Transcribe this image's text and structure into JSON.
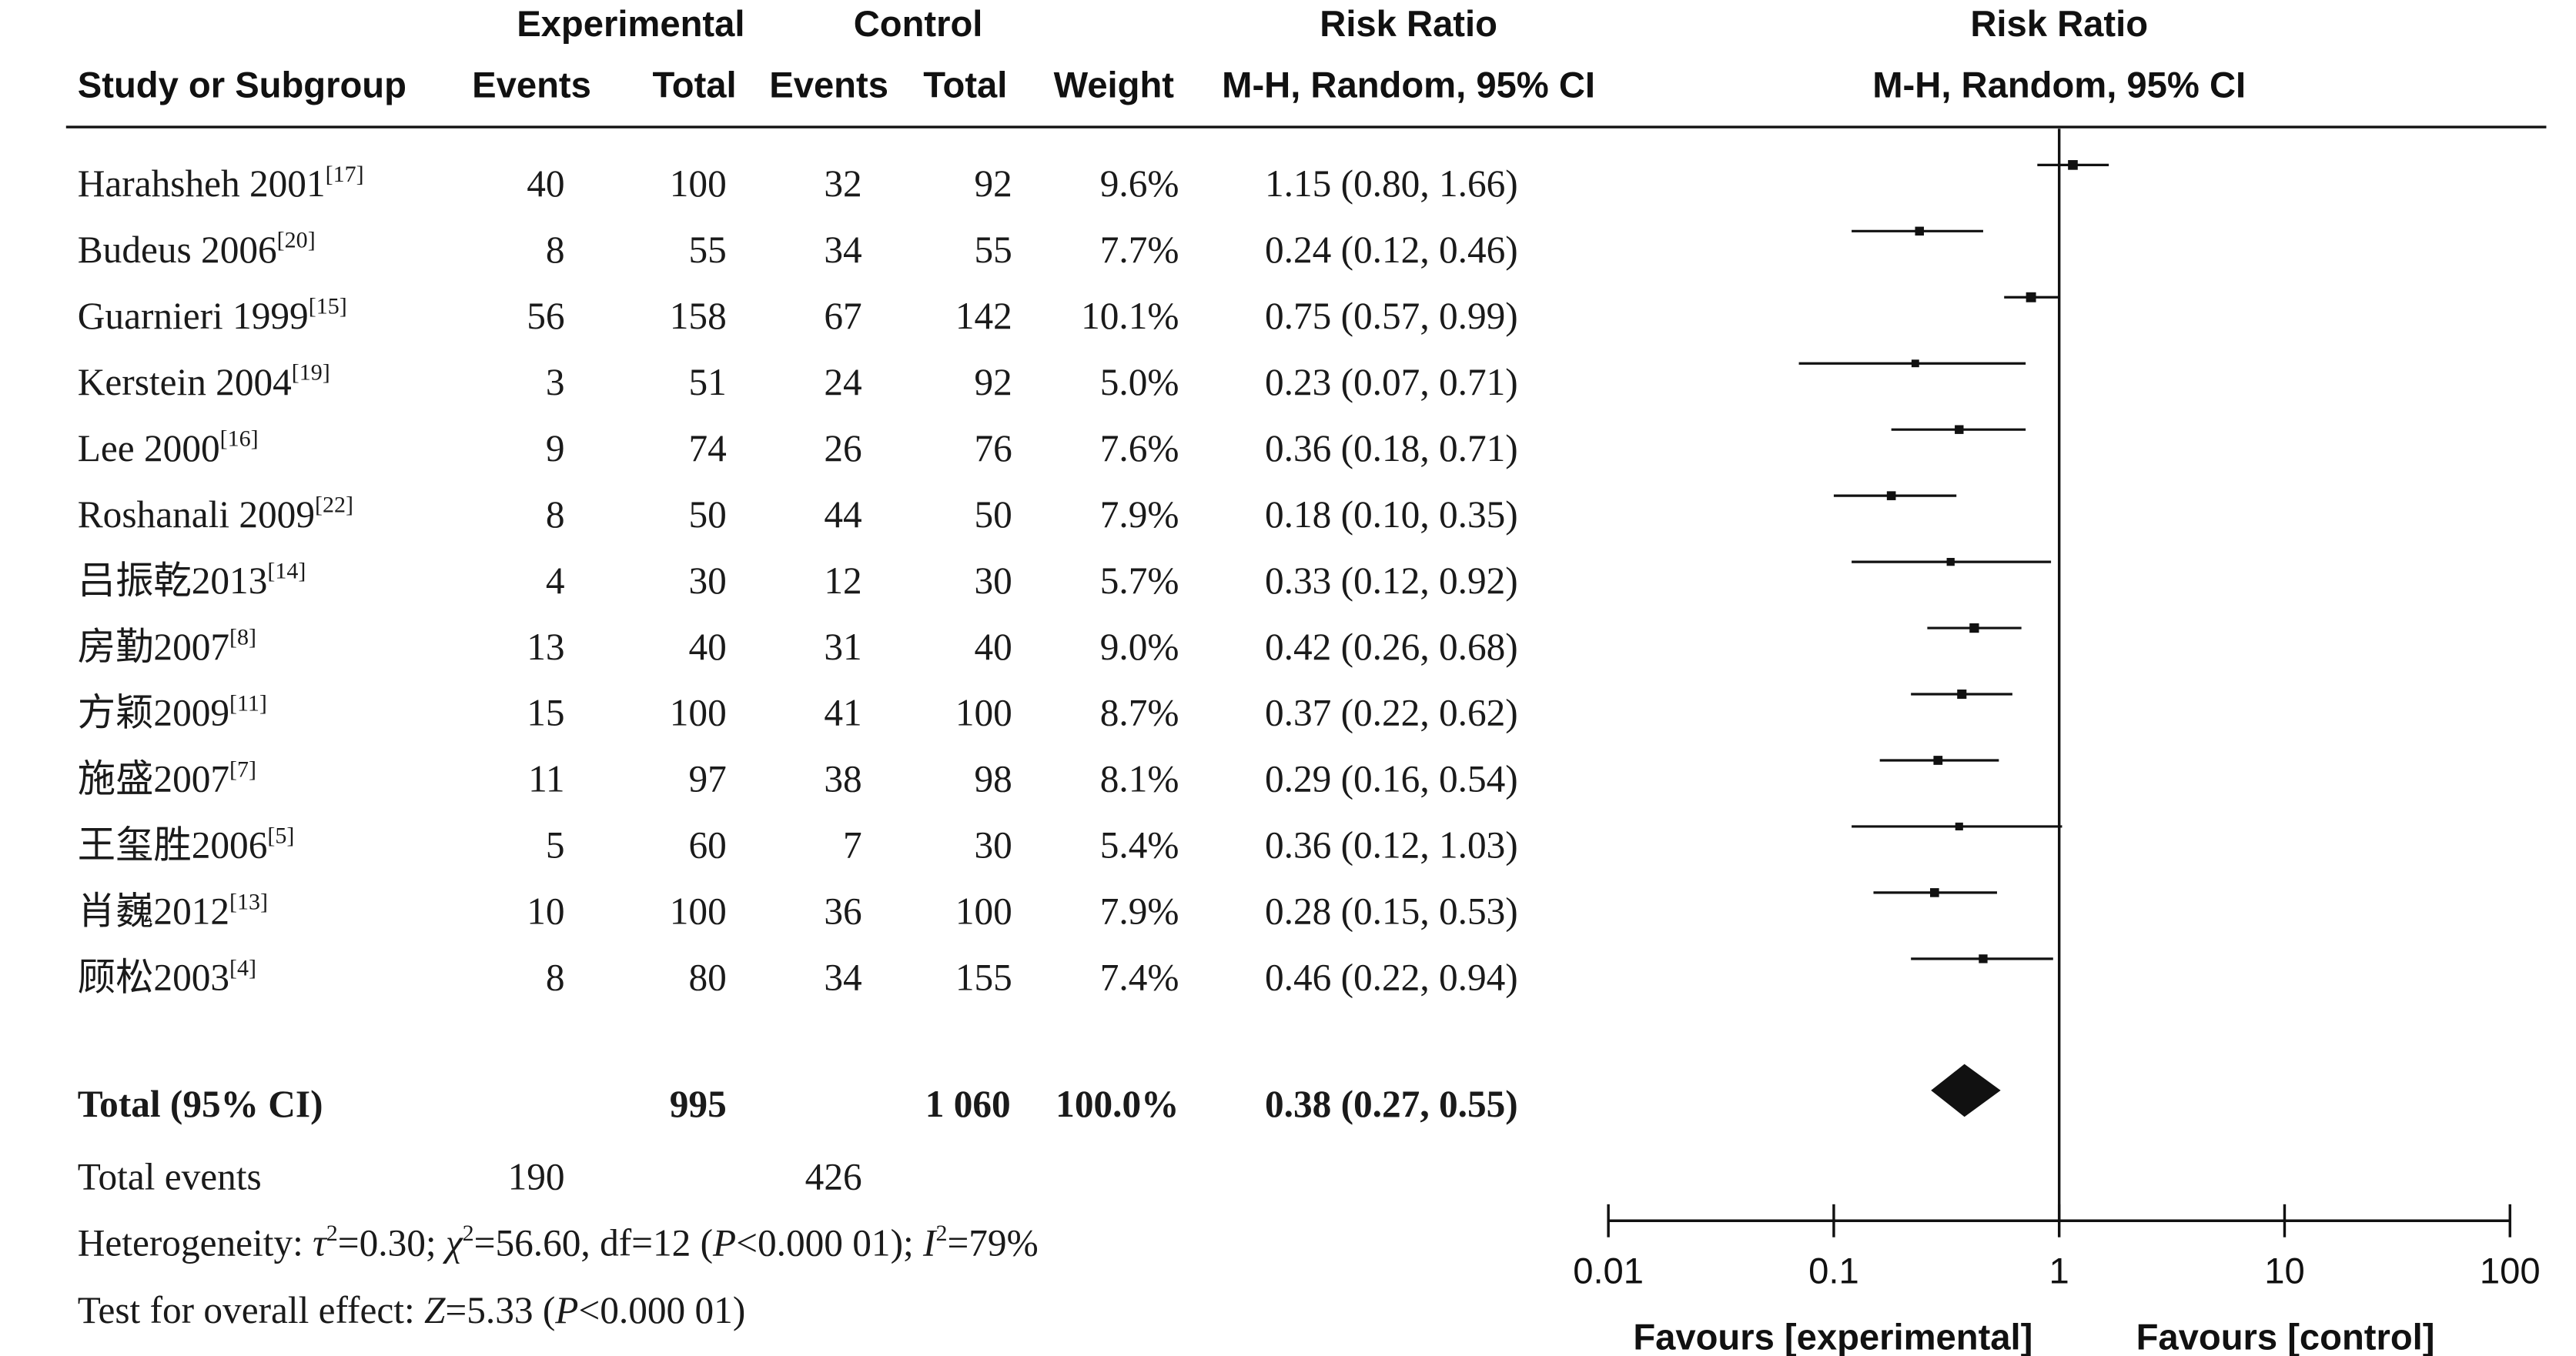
{
  "headers": {
    "group_experimental": "Experimental",
    "group_control": "Control",
    "group_risk_ratio": "Risk Ratio",
    "group_risk_ratio_plot": "Risk Ratio",
    "study": "Study or Subgroup",
    "exp_events": "Events",
    "exp_total": "Total",
    "ctl_events": "Events",
    "ctl_total": "Total",
    "weight": "Weight",
    "method": "M-H, Random, 95% CI",
    "method_plot": "M-H, Random, 95% CI"
  },
  "studies": [
    {
      "name": "Harahsheh 2001",
      "ref": "[17]",
      "exp_events": "40",
      "exp_total": "100",
      "ctl_events": "32",
      "ctl_total": "92",
      "weight": "9.6%",
      "ci_text": "1.15 (0.80, 1.66)"
    },
    {
      "name": "Budeus 2006",
      "ref": "[20]",
      "exp_events": "8",
      "exp_total": "55",
      "ctl_events": "34",
      "ctl_total": "55",
      "weight": "7.7%",
      "ci_text": "0.24 (0.12, 0.46)"
    },
    {
      "name": "Guarnieri 1999",
      "ref": "[15]",
      "exp_events": "56",
      "exp_total": "158",
      "ctl_events": "67",
      "ctl_total": "142",
      "weight": "10.1%",
      "ci_text": "0.75 (0.57, 0.99)"
    },
    {
      "name": "Kerstein 2004",
      "ref": "[19]",
      "exp_events": "3",
      "exp_total": "51",
      "ctl_events": "24",
      "ctl_total": "92",
      "weight": "5.0%",
      "ci_text": "0.23 (0.07, 0.71)"
    },
    {
      "name": "Lee 2000",
      "ref": "[16]",
      "exp_events": "9",
      "exp_total": "74",
      "ctl_events": "26",
      "ctl_total": "76",
      "weight": "7.6%",
      "ci_text": "0.36 (0.18, 0.71)"
    },
    {
      "name": "Roshanali 2009",
      "ref": "[22]",
      "exp_events": "8",
      "exp_total": "50",
      "ctl_events": "44",
      "ctl_total": "50",
      "weight": "7.9%",
      "ci_text": "0.18 (0.10, 0.35)"
    },
    {
      "name": "吕振乾2013",
      "ref": "[14]",
      "exp_events": "4",
      "exp_total": "30",
      "ctl_events": "12",
      "ctl_total": "30",
      "weight": "5.7%",
      "ci_text": "0.33 (0.12, 0.92)"
    },
    {
      "name": "房勤2007",
      "ref": "[8]",
      "exp_events": "13",
      "exp_total": "40",
      "ctl_events": "31",
      "ctl_total": "40",
      "weight": "9.0%",
      "ci_text": "0.42 (0.26, 0.68)"
    },
    {
      "name": "方颖2009",
      "ref": "[11]",
      "exp_events": "15",
      "exp_total": "100",
      "ctl_events": "41",
      "ctl_total": "100",
      "weight": "8.7%",
      "ci_text": "0.37 (0.22, 0.62)"
    },
    {
      "name": "施盛2007",
      "ref": "[7]",
      "exp_events": "11",
      "exp_total": "97",
      "ctl_events": "38",
      "ctl_total": "98",
      "weight": "8.1%",
      "ci_text": "0.29 (0.16, 0.54)"
    },
    {
      "name": "王玺胜2006",
      "ref": "[5]",
      "exp_events": "5",
      "exp_total": "60",
      "ctl_events": "7",
      "ctl_total": "30",
      "weight": "5.4%",
      "ci_text": "0.36 (0.12, 1.03)"
    },
    {
      "name": "肖巍2012",
      "ref": "[13]",
      "exp_events": "10",
      "exp_total": "100",
      "ctl_events": "36",
      "ctl_total": "100",
      "weight": "7.9%",
      "ci_text": "0.28 (0.15, 0.53)"
    },
    {
      "name": "顾松2003",
      "ref": "[4]",
      "exp_events": "8",
      "exp_total": "80",
      "ctl_events": "34",
      "ctl_total": "155",
      "weight": "7.4%",
      "ci_text": "0.46 (0.22, 0.94)"
    }
  ],
  "total": {
    "label": "Total (95% CI)",
    "exp_total": "995",
    "ctl_total": "1 060",
    "weight": "100.0%",
    "ci_text": "0.38 (0.27, 0.55)"
  },
  "total_events": {
    "label": "Total events",
    "exp": "190",
    "ctl": "426"
  },
  "heterogeneity": {
    "prefix": "Heterogeneity: ",
    "tau_sym": "τ",
    "tau_val": "=0.30; ",
    "chi_sym": "χ",
    "chi_val": "=56.60, df=12 (",
    "p_sym": "P",
    "p_val": "<0.000 01); ",
    "i_sym": "I",
    "i_val": "=79%",
    "sup": "2"
  },
  "overall_effect": {
    "prefix": "Test for overall effect: ",
    "z_sym": "Z",
    "z_val": "=5.33 (",
    "p_sym": "P",
    "p_val": "<0.000 01)"
  },
  "chart_data": {
    "type": "forest",
    "scale": "log",
    "xlim": [
      0.01,
      100
    ],
    "xticks": [
      "0.01",
      "0.1",
      "1",
      "10",
      "100"
    ],
    "xtick_values": [
      0.01,
      0.1,
      1,
      10,
      100
    ],
    "reference_line": 1,
    "label_left": "Favours [experimental]",
    "label_right": "Favours [control]",
    "studies": [
      {
        "name": "Harahsheh 2001",
        "rr": 1.15,
        "lo": 0.8,
        "hi": 1.66,
        "weight": 9.6
      },
      {
        "name": "Budeus 2006",
        "rr": 0.24,
        "lo": 0.12,
        "hi": 0.46,
        "weight": 7.7
      },
      {
        "name": "Guarnieri 1999",
        "rr": 0.75,
        "lo": 0.57,
        "hi": 0.99,
        "weight": 10.1
      },
      {
        "name": "Kerstein 2004",
        "rr": 0.23,
        "lo": 0.07,
        "hi": 0.71,
        "weight": 5.0
      },
      {
        "name": "Lee 2000",
        "rr": 0.36,
        "lo": 0.18,
        "hi": 0.71,
        "weight": 7.6
      },
      {
        "name": "Roshanali 2009",
        "rr": 0.18,
        "lo": 0.1,
        "hi": 0.35,
        "weight": 7.9
      },
      {
        "name": "吕振乾2013",
        "rr": 0.33,
        "lo": 0.12,
        "hi": 0.92,
        "weight": 5.7
      },
      {
        "name": "房勤2007",
        "rr": 0.42,
        "lo": 0.26,
        "hi": 0.68,
        "weight": 9.0
      },
      {
        "name": "方颖2009",
        "rr": 0.37,
        "lo": 0.22,
        "hi": 0.62,
        "weight": 8.7
      },
      {
        "name": "施盛2007",
        "rr": 0.29,
        "lo": 0.16,
        "hi": 0.54,
        "weight": 8.1
      },
      {
        "name": "王玺胜2006",
        "rr": 0.36,
        "lo": 0.12,
        "hi": 1.03,
        "weight": 5.4
      },
      {
        "name": "肖巍2012",
        "rr": 0.28,
        "lo": 0.15,
        "hi": 0.53,
        "weight": 7.9
      },
      {
        "name": "顾松2003",
        "rr": 0.46,
        "lo": 0.22,
        "hi": 0.94,
        "weight": 7.4
      }
    ],
    "pooled": {
      "rr": 0.38,
      "lo": 0.27,
      "hi": 0.55
    }
  }
}
